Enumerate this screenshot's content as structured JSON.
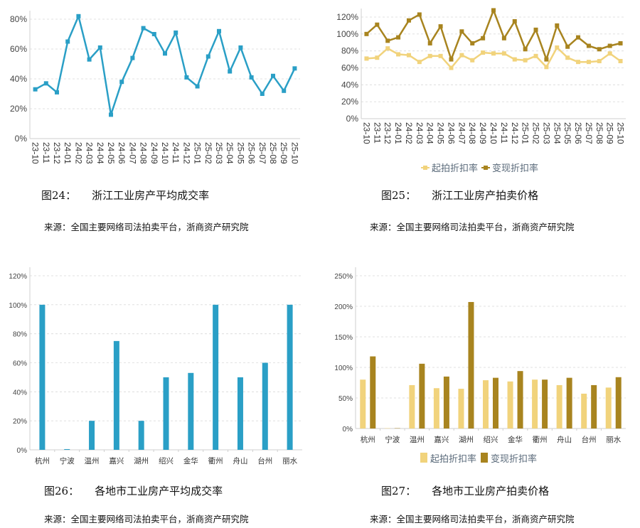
{
  "colors": {
    "teal": "#2a9fc6",
    "gold_light": "#f1d37c",
    "gold_dark": "#a8841f",
    "grid": "#d9d9d9",
    "axis": "#cfcfcf",
    "legend_text": "#5a6a7a"
  },
  "figures": [
    {
      "number": "图24：",
      "title": "浙江工业房产平均成交率",
      "source": "来源：全国主要网络司法拍卖平台，浙商资产研究院"
    },
    {
      "number": "图25：",
      "title": "浙江工业房产拍卖价格",
      "source": "来源：全国主要网络司法拍卖平台，浙商资产研究院"
    },
    {
      "number": "图26：",
      "title": "各地市工业房产平均成交率",
      "source": "来源：全国主要网络司法拍卖平台，浙商资产研究院"
    },
    {
      "number": "图27：",
      "title": "各地市工业房产拍卖价格",
      "source": "来源：全国主要网络司法拍卖平台，浙商资产研究院"
    }
  ],
  "chart_data": [
    {
      "type": "line",
      "x": [
        "23-10",
        "23-11",
        "23-12",
        "24-01",
        "24-02",
        "24-03",
        "24-04",
        "24-05",
        "24-06",
        "24-07",
        "24-08",
        "24-09",
        "24-10",
        "24-11",
        "24-12",
        "25-01",
        "25-02",
        "25-03",
        "25-04",
        "25-05",
        "25-06",
        "25-07",
        "25-08",
        "25-09",
        "25-10"
      ],
      "series": [
        {
          "values": [
            33,
            37,
            31,
            65,
            82,
            53,
            61,
            16,
            38,
            54,
            74,
            70,
            57,
            71,
            41,
            35,
            55,
            72,
            45,
            61,
            41,
            30,
            42,
            32,
            47
          ],
          "color": "#2a9fc6"
        }
      ],
      "yticks": [
        "0%",
        "20%",
        "40%",
        "60%",
        "80%"
      ],
      "ylim": [
        0,
        80
      ],
      "grid": true,
      "legend": null
    },
    {
      "type": "line",
      "x": [
        "23-10",
        "23-11",
        "23-12",
        "24-01",
        "24-02",
        "24-03",
        "24-04",
        "24-05",
        "24-06",
        "24-07",
        "24-08",
        "24-09",
        "24-10",
        "24-11",
        "24-12",
        "25-01",
        "25-02",
        "25-03",
        "25-04",
        "25-05",
        "25-06",
        "25-07",
        "25-08",
        "25-09",
        "25-10"
      ],
      "series": [
        {
          "name": "起拍折扣率",
          "values": [
            71,
            72,
            83,
            76,
            75,
            67,
            74,
            74,
            60,
            75,
            69,
            78,
            77,
            77,
            70,
            69,
            74,
            61,
            84,
            72,
            67,
            67,
            68,
            77,
            68
          ],
          "color": "#f1d37c"
        },
        {
          "name": "变现折扣率",
          "values": [
            100,
            111,
            92,
            96,
            116,
            123,
            89,
            109,
            70,
            103,
            89,
            95,
            128,
            95,
            115,
            82,
            105,
            70,
            110,
            85,
            96,
            86,
            82,
            86,
            89
          ],
          "color": "#a8841f"
        }
      ],
      "yticks": [
        "0%",
        "20%",
        "40%",
        "60%",
        "80%",
        "100%",
        "120%"
      ],
      "ylim": [
        0,
        120
      ],
      "grid": true,
      "legend": "bottom"
    },
    {
      "type": "bar",
      "categories": [
        "杭州",
        "宁波",
        "温州",
        "嘉兴",
        "湖州",
        "绍兴",
        "金华",
        "衢州",
        "舟山",
        "台州",
        "丽水"
      ],
      "series": [
        {
          "values": [
            100,
            0.5,
            20,
            75,
            20,
            50,
            53,
            100,
            50,
            60,
            100
          ],
          "color": "#2a9fc6"
        }
      ],
      "yticks": [
        "0%",
        "20%",
        "40%",
        "60%",
        "80%",
        "100%",
        "120%"
      ],
      "ylim": [
        0,
        120
      ],
      "grid": true,
      "legend": null
    },
    {
      "type": "bar",
      "categories": [
        "杭州",
        "宁波",
        "温州",
        "嘉兴",
        "湖州",
        "绍兴",
        "金华",
        "衢州",
        "舟山",
        "台州",
        "丽水"
      ],
      "series": [
        {
          "name": "起拍折扣率",
          "values": [
            80,
            0.5,
            71,
            66,
            65,
            79,
            77,
            80,
            71,
            57,
            67
          ],
          "color": "#f1d37c"
        },
        {
          "name": "变现折扣率",
          "values": [
            118,
            0.5,
            106,
            85,
            207,
            83,
            94,
            80,
            83,
            71,
            84
          ],
          "color": "#a8841f"
        }
      ],
      "yticks": [
        "0%",
        "50%",
        "100%",
        "150%",
        "200%",
        "250%"
      ],
      "ylim": [
        0,
        250
      ],
      "grid": true,
      "legend": "bottom"
    }
  ]
}
